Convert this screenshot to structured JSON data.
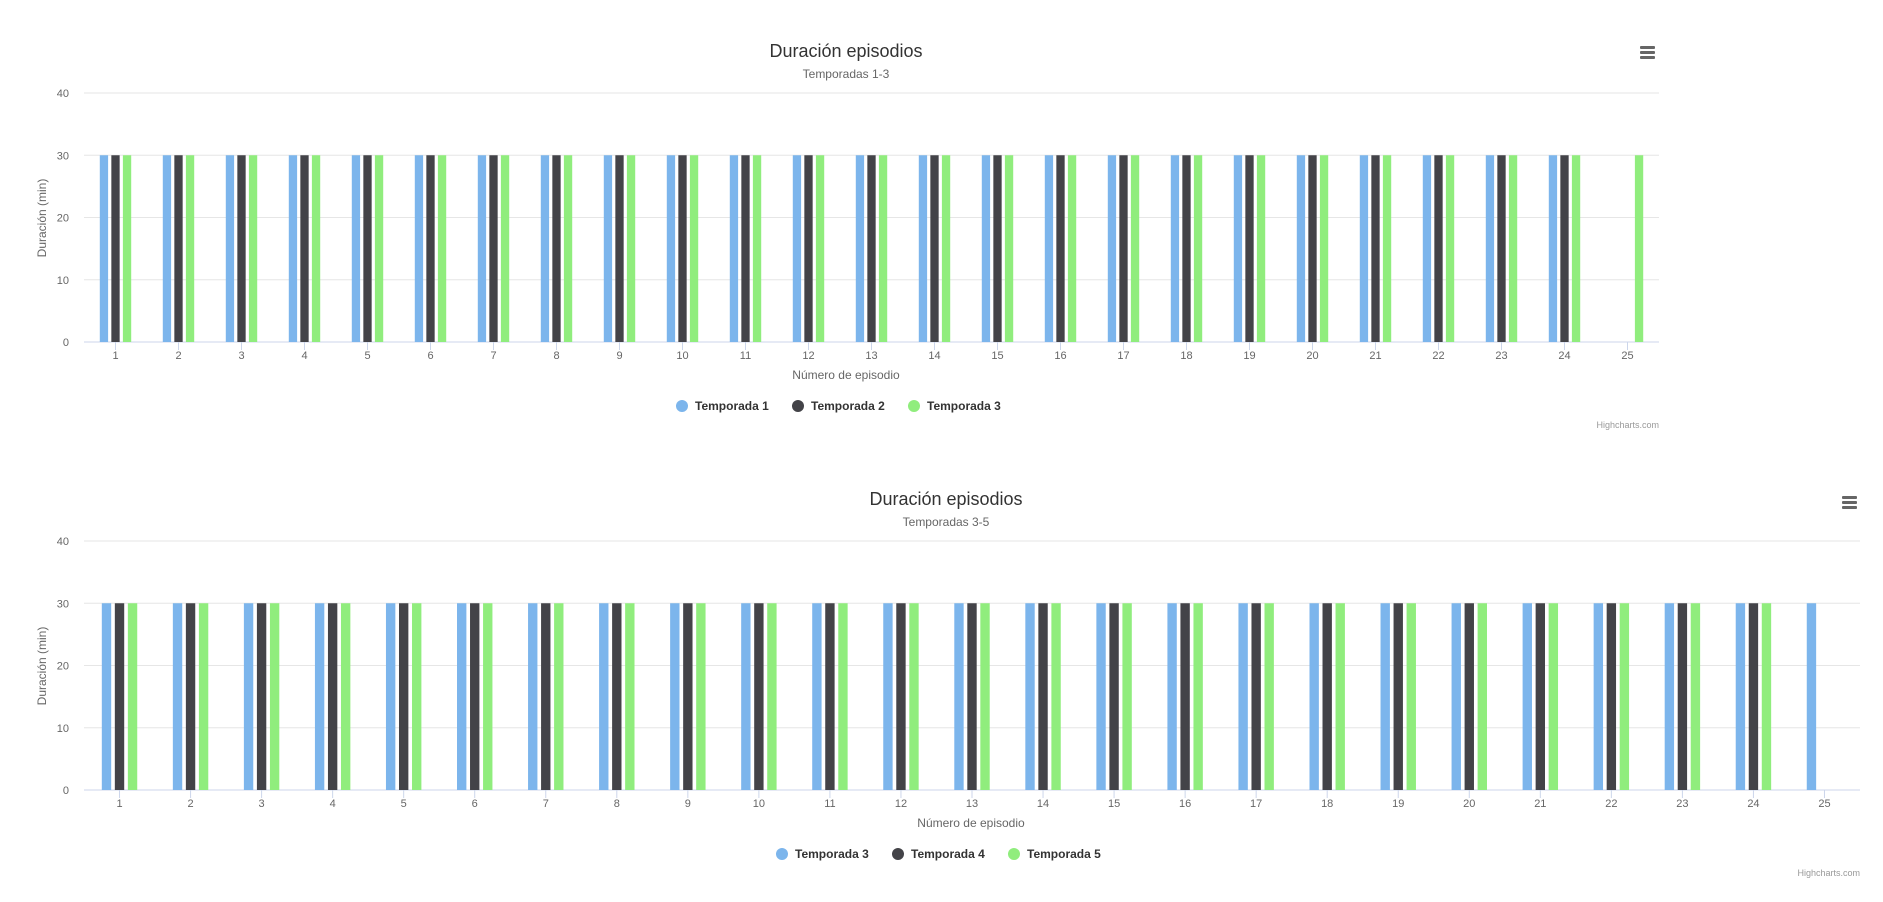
{
  "charts": [
    {
      "title": "Duración episodios",
      "subtitle": "Temporadas 1-3",
      "xlabel": "Número de episodio",
      "ylabel": "Duración (min)",
      "credits": "Highcharts.com",
      "menu_icon": "hamburger-menu-icon"
    },
    {
      "title": "Duración episodios",
      "subtitle": "Temporadas 3-5",
      "xlabel": "Número de episodio",
      "ylabel": "Duración (min)",
      "credits": "Highcharts.com",
      "menu_icon": "hamburger-menu-icon"
    }
  ],
  "chart_data": [
    {
      "type": "bar",
      "title": "Duración episodios",
      "subtitle": "Temporadas 1-3",
      "xlabel": "Número de episodio",
      "ylabel": "Duración (min)",
      "ylim": [
        0,
        40
      ],
      "yticks": [
        0,
        10,
        20,
        30,
        40
      ],
      "grid": true,
      "legend": "bottom-center",
      "categories": [
        "1",
        "2",
        "3",
        "4",
        "5",
        "6",
        "7",
        "8",
        "9",
        "10",
        "11",
        "12",
        "13",
        "14",
        "15",
        "16",
        "17",
        "18",
        "19",
        "20",
        "21",
        "22",
        "23",
        "24",
        "25"
      ],
      "series": [
        {
          "name": "Temporada 1",
          "color": "#7cb5ec",
          "values": [
            30,
            30,
            30,
            30,
            30,
            30,
            30,
            30,
            30,
            30,
            30,
            30,
            30,
            30,
            30,
            30,
            30,
            30,
            30,
            30,
            30,
            30,
            30,
            30,
            null
          ]
        },
        {
          "name": "Temporada 2",
          "color": "#434348",
          "values": [
            30,
            30,
            30,
            30,
            30,
            30,
            30,
            30,
            30,
            30,
            30,
            30,
            30,
            30,
            30,
            30,
            30,
            30,
            30,
            30,
            30,
            30,
            30,
            30,
            null
          ]
        },
        {
          "name": "Temporada 3",
          "color": "#90ed7d",
          "values": [
            30,
            30,
            30,
            30,
            30,
            30,
            30,
            30,
            30,
            30,
            30,
            30,
            30,
            30,
            30,
            30,
            30,
            30,
            30,
            30,
            30,
            30,
            30,
            30,
            30
          ]
        }
      ]
    },
    {
      "type": "bar",
      "title": "Duración episodios",
      "subtitle": "Temporadas 3-5",
      "xlabel": "Número de episodio",
      "ylabel": "Duración (min)",
      "ylim": [
        0,
        40
      ],
      "yticks": [
        0,
        10,
        20,
        30,
        40
      ],
      "grid": true,
      "legend": "bottom-center",
      "categories": [
        "1",
        "2",
        "3",
        "4",
        "5",
        "6",
        "7",
        "8",
        "9",
        "10",
        "11",
        "12",
        "13",
        "14",
        "15",
        "16",
        "17",
        "18",
        "19",
        "20",
        "21",
        "22",
        "23",
        "24",
        "25"
      ],
      "series": [
        {
          "name": "Temporada 3",
          "color": "#7cb5ec",
          "values": [
            30,
            30,
            30,
            30,
            30,
            30,
            30,
            30,
            30,
            30,
            30,
            30,
            30,
            30,
            30,
            30,
            30,
            30,
            30,
            30,
            30,
            30,
            30,
            30,
            30
          ]
        },
        {
          "name": "Temporada 4",
          "color": "#434348",
          "values": [
            30,
            30,
            30,
            30,
            30,
            30,
            30,
            30,
            30,
            30,
            30,
            30,
            30,
            30,
            30,
            30,
            30,
            30,
            30,
            30,
            30,
            30,
            30,
            30,
            null
          ]
        },
        {
          "name": "Temporada 5",
          "color": "#90ed7d",
          "values": [
            30,
            30,
            30,
            30,
            30,
            30,
            30,
            30,
            30,
            30,
            30,
            30,
            30,
            30,
            30,
            30,
            30,
            30,
            30,
            30,
            30,
            30,
            30,
            30,
            null
          ]
        }
      ]
    }
  ]
}
